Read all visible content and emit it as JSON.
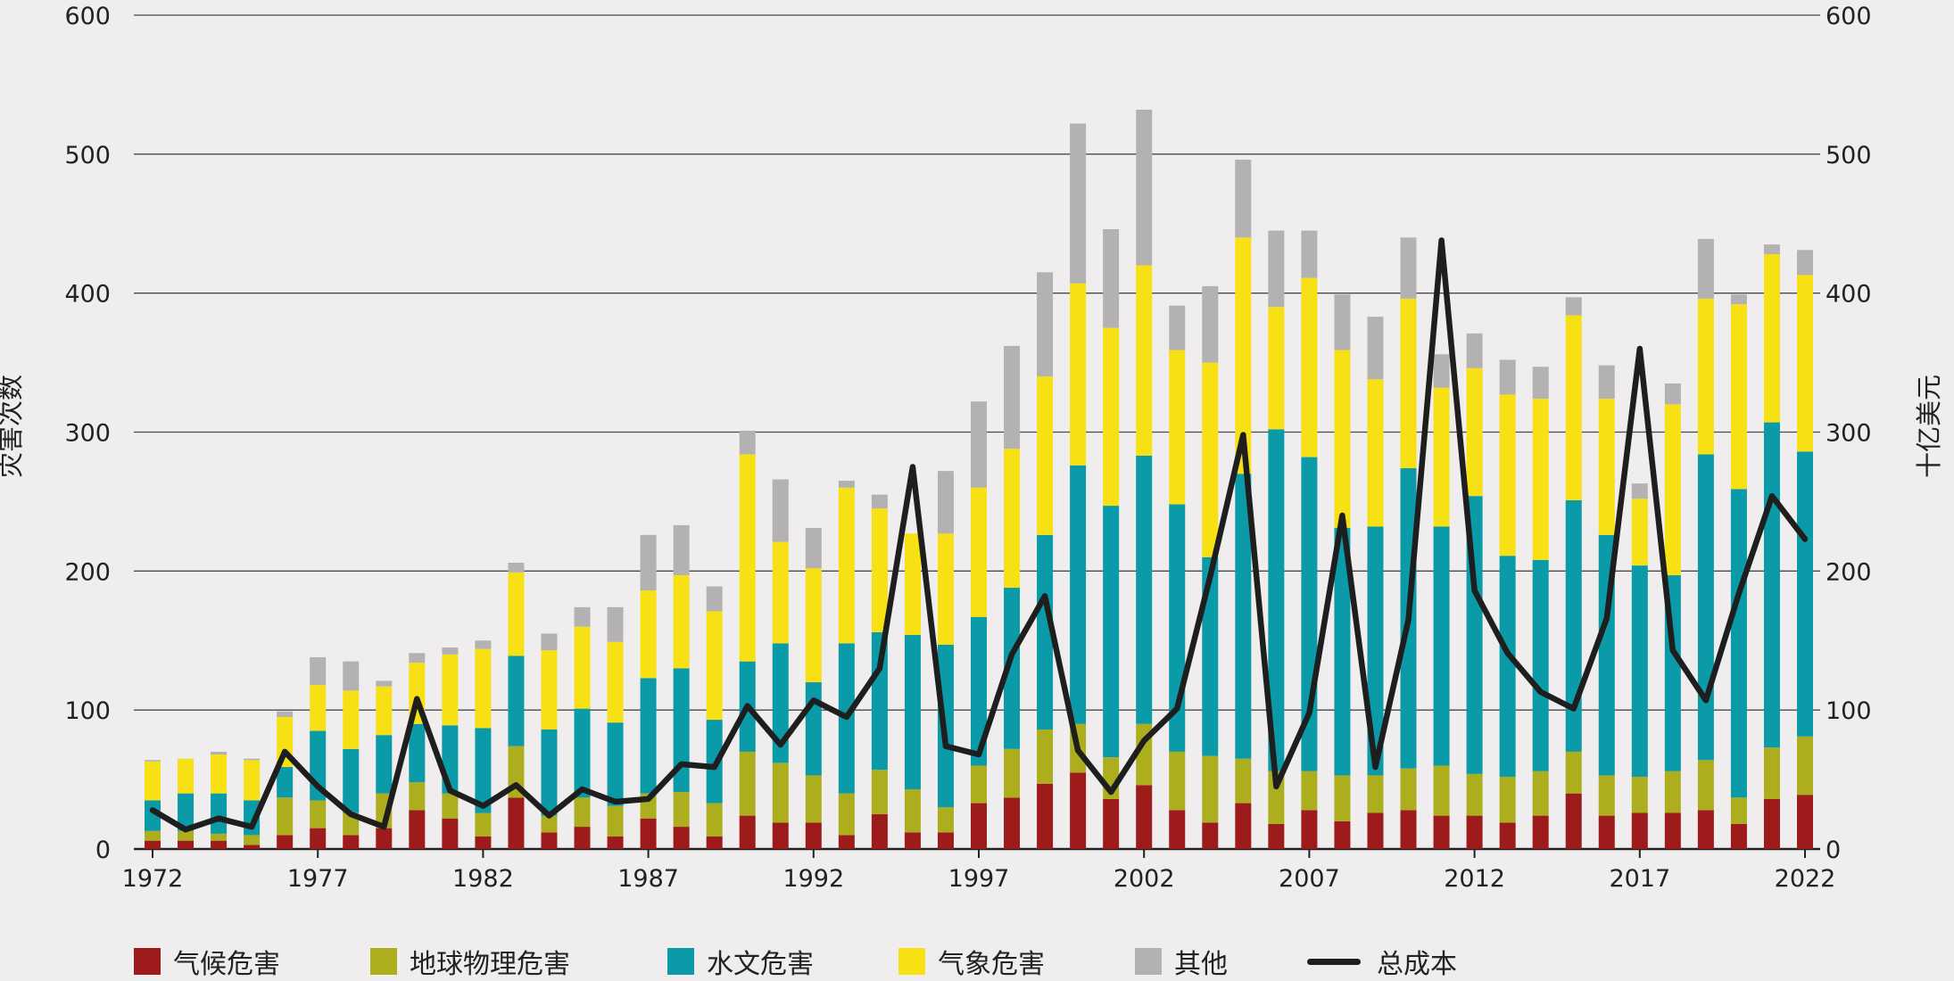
{
  "chart_data": {
    "type": "bar",
    "stacked": true,
    "years": [
      1972,
      1973,
      1974,
      1975,
      1976,
      1977,
      1978,
      1979,
      1980,
      1981,
      1982,
      1983,
      1984,
      1985,
      1986,
      1987,
      1988,
      1989,
      1990,
      1991,
      1992,
      1993,
      1994,
      1995,
      1996,
      1997,
      1998,
      1999,
      2000,
      2001,
      2002,
      2003,
      2004,
      2005,
      2006,
      2007,
      2008,
      2009,
      2010,
      2011,
      2012,
      2013,
      2014,
      2015,
      2016,
      2017,
      2018,
      2019,
      2020,
      2021,
      2022
    ],
    "x_tick_labels": [
      "1972",
      "1977",
      "1982",
      "1987",
      "1992",
      "1997",
      "2002",
      "2007",
      "2012",
      "2017",
      "2022"
    ],
    "y_ticks": [
      "0",
      "100",
      "200",
      "300",
      "400",
      "500",
      "600"
    ],
    "y2_ticks": [
      "0",
      "100",
      "200",
      "300",
      "400",
      "500",
      "600"
    ],
    "ylim": [
      0,
      600
    ],
    "y2lim": [
      0,
      600
    ],
    "ylabel": "灾害次数",
    "y2label": "十亿美元",
    "grid": true,
    "legend_position": "bottom",
    "series": [
      {
        "name": "气候危害",
        "color": "#9e1b1b",
        "values": [
          6,
          6,
          6,
          3,
          10,
          15,
          10,
          15,
          28,
          22,
          9,
          37,
          12,
          16,
          9,
          22,
          16,
          9,
          24,
          19,
          19,
          10,
          25,
          12,
          12,
          33,
          37,
          47,
          55,
          36,
          46,
          28,
          19,
          33,
          18,
          28,
          20,
          26,
          28,
          24,
          24,
          19,
          24,
          40,
          24,
          26,
          26,
          28,
          18,
          36,
          39
        ]
      },
      {
        "name": "地球物理危害",
        "color": "#acae1d",
        "values": [
          7,
          7,
          5,
          7,
          27,
          20,
          16,
          25,
          20,
          18,
          17,
          37,
          12,
          21,
          22,
          18,
          25,
          24,
          46,
          43,
          34,
          30,
          32,
          31,
          18,
          27,
          35,
          39,
          35,
          30,
          44,
          42,
          48,
          32,
          38,
          28,
          33,
          27,
          30,
          36,
          30,
          33,
          32,
          30,
          29,
          26,
          30,
          36,
          19,
          37,
          42
        ]
      },
      {
        "name": "水文危害",
        "color": "#0a9aa8",
        "values": [
          22,
          27,
          29,
          25,
          22,
          50,
          46,
          42,
          42,
          49,
          61,
          65,
          62,
          64,
          60,
          83,
          89,
          60,
          65,
          86,
          67,
          108,
          99,
          111,
          117,
          107,
          116,
          140,
          186,
          181,
          193,
          178,
          143,
          205,
          246,
          226,
          178,
          179,
          216,
          172,
          200,
          159,
          152,
          181,
          173,
          152,
          141,
          220,
          222,
          234,
          205
        ]
      },
      {
        "name": "气象危害",
        "color": "#f7e014",
        "values": [
          28,
          25,
          28,
          29,
          36,
          33,
          42,
          35,
          44,
          51,
          57,
          60,
          57,
          59,
          58,
          63,
          67,
          78,
          149,
          73,
          82,
          112,
          89,
          73,
          80,
          93,
          100,
          114,
          131,
          128,
          137,
          111,
          140,
          170,
          88,
          129,
          128,
          106,
          122,
          100,
          92,
          116,
          116,
          133,
          98,
          48,
          123,
          112,
          133,
          121,
          127
        ]
      },
      {
        "name": "其他",
        "color": "#b3b1b1",
        "values": [
          1,
          0,
          2,
          1,
          4,
          20,
          21,
          4,
          7,
          5,
          6,
          7,
          12,
          14,
          25,
          40,
          36,
          18,
          17,
          45,
          29,
          5,
          10,
          0,
          45,
          62,
          74,
          75,
          115,
          71,
          112,
          32,
          55,
          56,
          55,
          34,
          40,
          45,
          44,
          24,
          25,
          25,
          23,
          13,
          24,
          11,
          15,
          43,
          7,
          7,
          18
        ]
      }
    ],
    "line_series": {
      "name": "总成本",
      "color": "#1e1e1e",
      "axis": "right",
      "values": [
        28,
        14,
        22,
        16,
        70,
        45,
        25,
        16,
        108,
        42,
        31,
        46,
        24,
        43,
        34,
        36,
        61,
        59,
        103,
        75,
        107,
        95,
        130,
        275,
        74,
        68,
        140,
        182,
        71,
        41,
        78,
        101,
        196,
        298,
        45,
        98,
        240,
        59,
        165,
        438,
        186,
        141,
        113,
        101,
        166,
        360,
        143,
        107,
        184,
        254,
        223
      ]
    }
  }
}
